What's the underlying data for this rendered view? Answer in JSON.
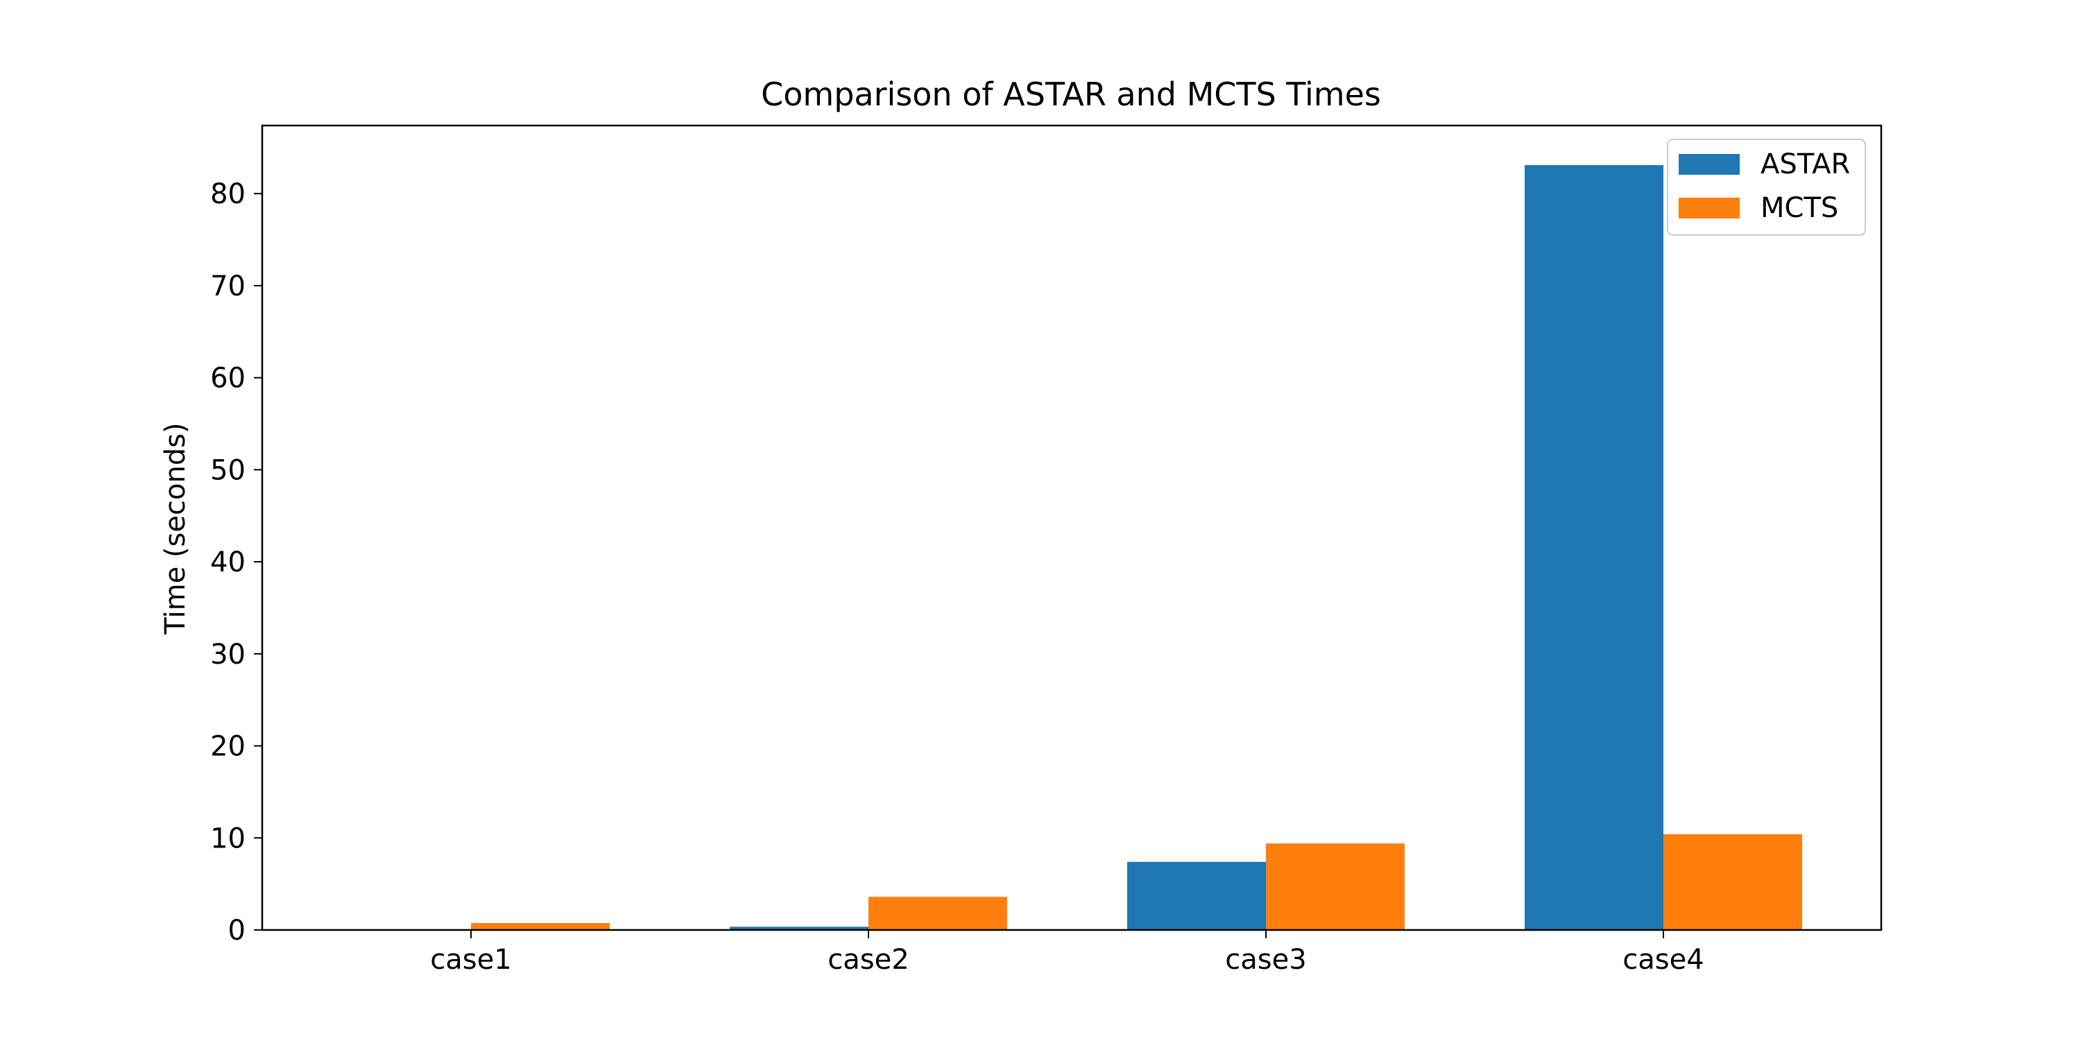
{
  "chart_data": {
    "type": "bar",
    "title": "Comparison of ASTAR and MCTS Times",
    "xlabel": "",
    "ylabel": "Time (seconds)",
    "categories": [
      "case1",
      "case2",
      "case3",
      "case4"
    ],
    "series": [
      {
        "name": "ASTAR",
        "color": "#1f77b4",
        "values": [
          0.02,
          0.35,
          7.4,
          83.1
        ]
      },
      {
        "name": "MCTS",
        "color": "#ff7f0e",
        "values": [
          0.75,
          3.6,
          9.4,
          10.4
        ]
      }
    ],
    "ylim": [
      0,
      87.4
    ],
    "yticks": [
      0,
      10,
      20,
      30,
      40,
      50,
      60,
      70,
      80
    ],
    "grid": false,
    "legend_position": "top-right"
  }
}
